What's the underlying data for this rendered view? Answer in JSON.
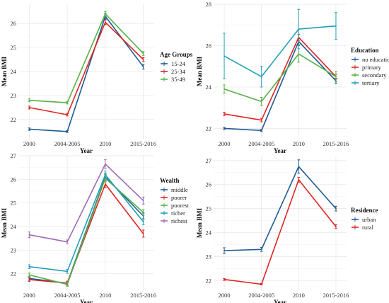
{
  "chart_data": [
    {
      "type": "line",
      "categories": [
        "2000",
        "2004-2005",
        "2010",
        "2015-2016"
      ],
      "xlabel": "Year",
      "ylabel": "Mean BMI",
      "ylim": [
        21.2,
        26.8
      ],
      "yticks": [
        22,
        23,
        24,
        25,
        26
      ],
      "legend_title": "Age Groups",
      "legend_position": "right",
      "grid": true,
      "series": [
        {
          "name": "15-24",
          "color": "#1f5b94",
          "values": [
            21.6,
            21.5,
            26.3,
            24.2
          ],
          "errors": [
            0.05,
            0.04,
            0.12,
            0.1
          ]
        },
        {
          "name": "25-34",
          "color": "#e02424",
          "values": [
            22.5,
            22.2,
            26.05,
            24.5
          ],
          "errors": [
            0.06,
            0.05,
            0.1,
            0.08
          ]
        },
        {
          "name": "35-49",
          "color": "#55b146",
          "values": [
            22.8,
            22.7,
            26.4,
            24.75
          ],
          "errors": [
            0.06,
            0.05,
            0.1,
            0.08
          ]
        }
      ]
    },
    {
      "type": "line",
      "categories": [
        "2000",
        "2004-2005",
        "2010",
        "2015-2016"
      ],
      "xlabel": "Year",
      "ylabel": "Mean BMI",
      "ylim": [
        21.5,
        28
      ],
      "yticks": [
        22,
        24,
        26,
        28
      ],
      "legend_title": "Education",
      "legend_position": "right",
      "grid": true,
      "series": [
        {
          "name": "no education",
          "color": "#1f5b94",
          "values": [
            22.0,
            21.9,
            26.2,
            24.3
          ],
          "errors": [
            0.05,
            0.05,
            0.15,
            0.12
          ]
        },
        {
          "name": "primary",
          "color": "#e02424",
          "values": [
            22.7,
            22.4,
            26.4,
            24.5
          ],
          "errors": [
            0.08,
            0.08,
            0.15,
            0.12
          ]
        },
        {
          "name": "secondary",
          "color": "#55b146",
          "values": [
            23.9,
            23.3,
            25.6,
            24.5
          ],
          "errors": [
            0.2,
            0.2,
            0.4,
            0.25
          ]
        },
        {
          "name": "tertiary",
          "color": "#21a0b8",
          "values": [
            25.5,
            24.5,
            26.8,
            26.95
          ],
          "errors": [
            1.1,
            0.5,
            0.95,
            0.65
          ]
        }
      ]
    },
    {
      "type": "line",
      "categories": [
        "2000",
        "2004-2005",
        "2010",
        "2015-2016"
      ],
      "xlabel": "Year",
      "ylabel": "Mean BMI",
      "ylim": [
        21.3,
        27
      ],
      "yticks": [
        22,
        23,
        24,
        25,
        26,
        27
      ],
      "legend_title": "Wealth",
      "legend_position": "right",
      "grid": true,
      "series": [
        {
          "name": "middle",
          "color": "#1f5b94",
          "values": [
            21.8,
            21.6,
            26.1,
            24.45
          ],
          "errors": [
            0.08,
            0.08,
            0.15,
            0.12
          ]
        },
        {
          "name": "poorer",
          "color": "#e02424",
          "values": [
            21.75,
            21.6,
            25.8,
            23.7
          ],
          "errors": [
            0.08,
            0.08,
            0.15,
            0.15
          ]
        },
        {
          "name": "poorest",
          "color": "#55b146",
          "values": [
            21.95,
            21.55,
            26.05,
            24.6
          ],
          "errors": [
            0.08,
            0.08,
            0.15,
            0.12
          ]
        },
        {
          "name": "richer",
          "color": "#21a0b8",
          "values": [
            22.3,
            22.1,
            26.2,
            24.2
          ],
          "errors": [
            0.08,
            0.08,
            0.15,
            0.12
          ]
        },
        {
          "name": "richest",
          "color": "#9c6bb5",
          "values": [
            23.65,
            23.35,
            26.65,
            25.1
          ],
          "errors": [
            0.12,
            0.08,
            0.18,
            0.15
          ]
        }
      ]
    },
    {
      "type": "line",
      "categories": [
        "2000",
        "2004-2005",
        "2010",
        "2015-2016"
      ],
      "xlabel": "Year",
      "ylabel": "Mean BMI",
      "ylim": [
        21.6,
        27.2
      ],
      "yticks": [
        22,
        23,
        24,
        25,
        26,
        27
      ],
      "legend_title": "Residence",
      "legend_position": "right",
      "grid": true,
      "series": [
        {
          "name": "urban",
          "color": "#1f5b94",
          "values": [
            23.25,
            23.3,
            26.75,
            25.0
          ],
          "errors": [
            0.12,
            0.08,
            0.28,
            0.1
          ]
        },
        {
          "name": "rural",
          "color": "#e02424",
          "values": [
            22.05,
            21.85,
            26.2,
            24.25
          ],
          "errors": [
            0.04,
            0.03,
            0.1,
            0.08
          ]
        }
      ]
    }
  ]
}
